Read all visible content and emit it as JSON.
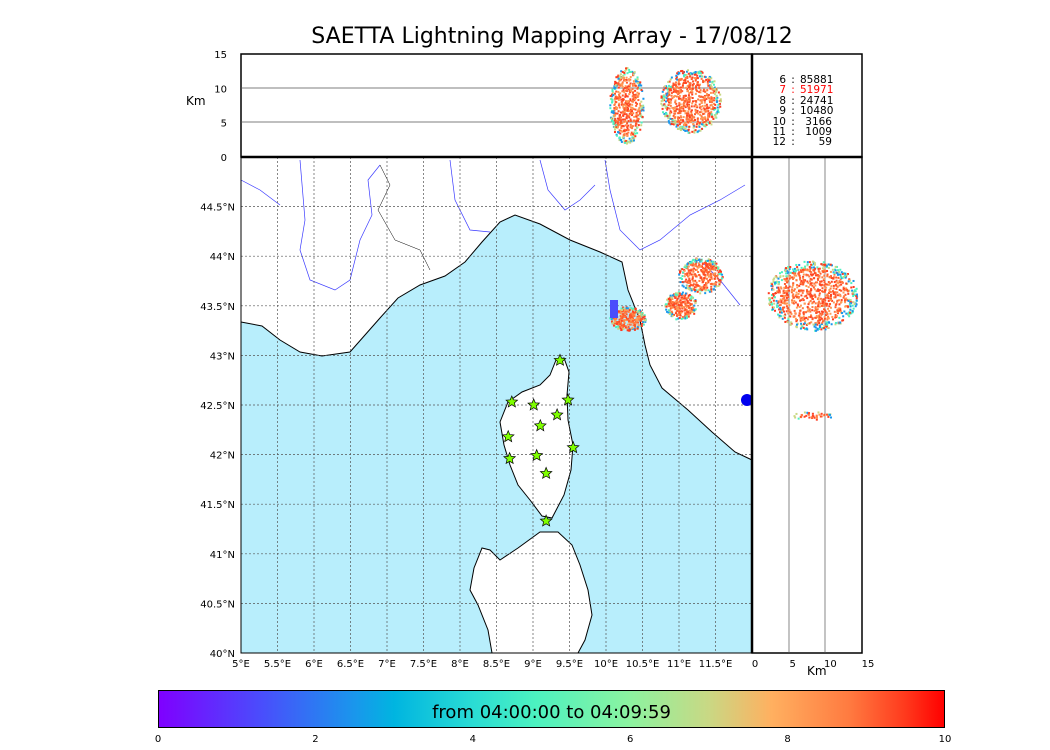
{
  "chart_data": {
    "type": "scatter",
    "title": "SAETTA Lightning Mapping Array - 17/08/12",
    "map": {
      "lon_range": [
        5,
        12
      ],
      "lat_range": [
        40,
        45
      ],
      "lon_ticks": [
        "5°E",
        "5.5°E",
        "6°E",
        "6.5°E",
        "7°E",
        "7.5°E",
        "8°E",
        "8.5°E",
        "9°E",
        "9.5°E",
        "10°E",
        "10.5°E",
        "11°E",
        "11.5°E"
      ],
      "lat_ticks": [
        "40°N",
        "40.5°N",
        "41°N",
        "41.5°N",
        "42°N",
        "42.5°N",
        "43°N",
        "43.5°N",
        "44°N",
        "44.5°N"
      ],
      "grid": true,
      "sea_color": "#b8eefc",
      "station_color": "#7fff00",
      "stations": [
        {
          "lon": 9.37,
          "lat": 42.95
        },
        {
          "lon": 8.71,
          "lat": 42.53
        },
        {
          "lon": 9.01,
          "lat": 42.5
        },
        {
          "lon": 9.48,
          "lat": 42.55
        },
        {
          "lon": 9.33,
          "lat": 42.4
        },
        {
          "lon": 9.1,
          "lat": 42.29
        },
        {
          "lon": 8.66,
          "lat": 42.18
        },
        {
          "lon": 9.55,
          "lat": 42.07
        },
        {
          "lon": 9.05,
          "lat": 41.99
        },
        {
          "lon": 8.68,
          "lat": 41.96
        },
        {
          "lon": 9.18,
          "lat": 41.81
        },
        {
          "lon": 9.18,
          "lat": 41.33
        }
      ]
    },
    "altitude_panel": {
      "ylabel": "Km",
      "ylim": [
        0,
        15
      ],
      "yticks": [
        "0",
        "5",
        "10",
        "15"
      ]
    },
    "side_panel": {
      "xlabel": "Km",
      "xlim": [
        0,
        15
      ],
      "xticks": [
        "0",
        "5",
        "10",
        "15"
      ]
    },
    "station_counts": [
      {
        "stations": "6",
        "count": "85881",
        "highlight": false
      },
      {
        "stations": "7",
        "count": "51971",
        "highlight": true
      },
      {
        "stations": "8",
        "count": "24741",
        "highlight": false
      },
      {
        "stations": "9",
        "count": "10480",
        "highlight": false
      },
      {
        "stations": "10",
        "count": "3166",
        "highlight": false
      },
      {
        "stations": "11",
        "count": "1009",
        "highlight": false
      },
      {
        "stations": "12",
        "count": "59",
        "highlight": false
      }
    ],
    "colorbar": {
      "label": "from 04:00:00 to 04:09:59",
      "range": [
        0,
        10
      ],
      "ticks": [
        "0",
        "2",
        "4",
        "6",
        "8",
        "10"
      ]
    }
  }
}
